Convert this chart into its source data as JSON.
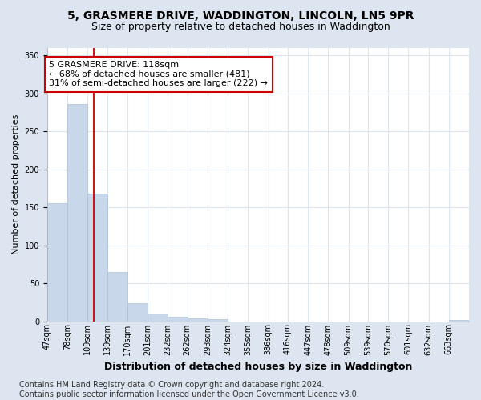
{
  "title": "5, GRASMERE DRIVE, WADDINGTON, LINCOLN, LN5 9PR",
  "subtitle": "Size of property relative to detached houses in Waddington",
  "xlabel": "Distribution of detached houses by size in Waddington",
  "ylabel": "Number of detached properties",
  "bar_color": "#c8d8ea",
  "bar_edge_color": "#aabfd4",
  "vline_x_index": 2,
  "vline_color": "#cc0000",
  "annotation_line1": "5 GRASMERE DRIVE: 118sqm",
  "annotation_line2": "← 68% of detached houses are smaller (481)",
  "annotation_line3": "31% of semi-detached houses are larger (222) →",
  "annotation_box_color": "#ffffff",
  "annotation_box_edge": "#cc0000",
  "categories": [
    "47sqm",
    "78sqm",
    "109sqm",
    "139sqm",
    "170sqm",
    "201sqm",
    "232sqm",
    "262sqm",
    "293sqm",
    "324sqm",
    "355sqm",
    "386sqm",
    "416sqm",
    "447sqm",
    "478sqm",
    "509sqm",
    "539sqm",
    "570sqm",
    "601sqm",
    "632sqm",
    "663sqm"
  ],
  "values": [
    155,
    286,
    168,
    65,
    24,
    10,
    6,
    4,
    3,
    0,
    0,
    0,
    0,
    0,
    0,
    0,
    0,
    0,
    0,
    0,
    2
  ],
  "bin_edges": [
    47,
    78,
    109,
    139,
    170,
    201,
    232,
    262,
    293,
    324,
    355,
    386,
    416,
    447,
    478,
    509,
    539,
    570,
    601,
    632,
    663,
    694
  ],
  "ylim": [
    0,
    360
  ],
  "yticks": [
    0,
    50,
    100,
    150,
    200,
    250,
    300,
    350
  ],
  "figure_bg": "#dde6f0",
  "plot_bg": "#ffffff",
  "grid_color": "#dde6f0",
  "footer": "Contains HM Land Registry data © Crown copyright and database right 2024.\nContains public sector information licensed under the Open Government Licence v3.0.",
  "title_fontsize": 10,
  "subtitle_fontsize": 9,
  "xlabel_fontsize": 9,
  "ylabel_fontsize": 8,
  "tick_fontsize": 7,
  "annot_fontsize": 8,
  "footer_fontsize": 7
}
